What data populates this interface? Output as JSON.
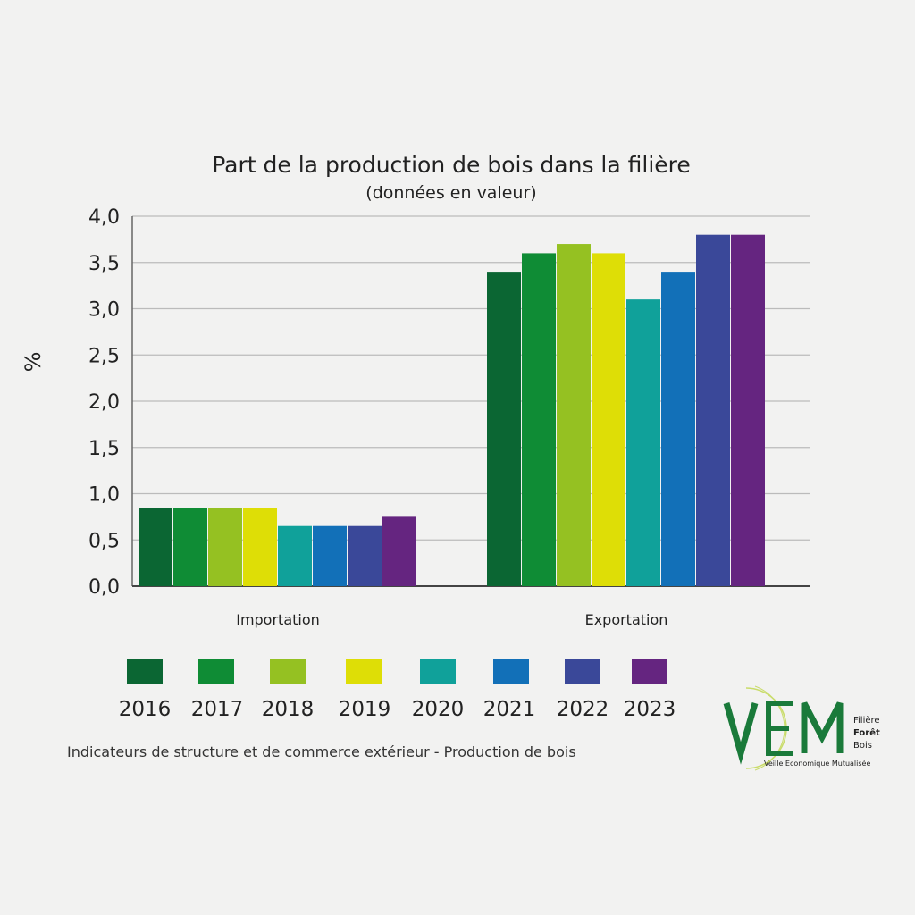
{
  "chart_data": {
    "type": "bar",
    "title": "Part de la production de bois dans la filière",
    "subtitle": "(données en valeur)",
    "ylabel": "%",
    "xlabel": "",
    "ylim": [
      0,
      4
    ],
    "yticks": [
      "0,0",
      "0,5",
      "1,0",
      "1,5",
      "2,0",
      "2,5",
      "3,0",
      "3,5",
      "4,0"
    ],
    "ytick_values": [
      0,
      0.5,
      1,
      1.5,
      2,
      2.5,
      3,
      3.5,
      4
    ],
    "grid": true,
    "legend_position": "bottom",
    "categories": [
      "Importation",
      "Exportation"
    ],
    "series": [
      {
        "name": "2016",
        "color": "#0b6633",
        "values": [
          0.85,
          3.4
        ]
      },
      {
        "name": "2017",
        "color": "#0f8c35",
        "values": [
          0.85,
          3.6
        ]
      },
      {
        "name": "2018",
        "color": "#95c122",
        "values": [
          0.85,
          3.7
        ]
      },
      {
        "name": "2019",
        "color": "#dede06",
        "values": [
          0.85,
          3.6
        ]
      },
      {
        "name": "2020",
        "color": "#10a19a",
        "values": [
          0.65,
          3.1
        ]
      },
      {
        "name": "2021",
        "color": "#1270b8",
        "values": [
          0.65,
          3.4
        ]
      },
      {
        "name": "2022",
        "color": "#3a4899",
        "values": [
          0.65,
          3.8
        ]
      },
      {
        "name": "2023",
        "color": "#652580",
        "values": [
          0.75,
          3.8
        ]
      }
    ]
  },
  "footer": {
    "source": "Indicateurs de structure et de commerce extérieur - Production de bois"
  },
  "logo": {
    "text": "VEM",
    "line1": "Filière",
    "line2": "Forêt",
    "line3": "Bois",
    "tagline": "Veille Economique Mutualisée"
  }
}
